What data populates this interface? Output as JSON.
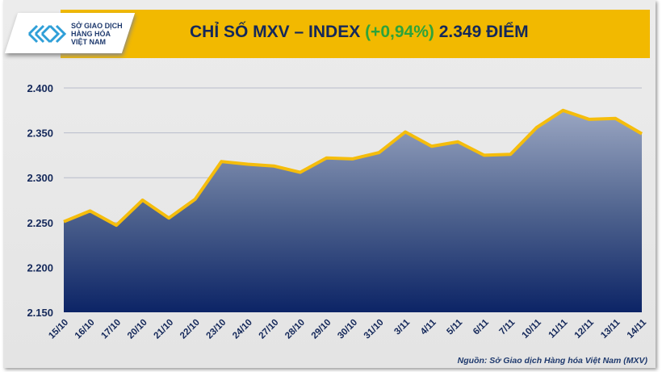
{
  "header": {
    "logo_text": [
      "SỞ GIAO DỊCH",
      "HÀNG HÓA",
      "VIỆT NAM"
    ],
    "title": "CHỈ SỐ MXV – INDEX",
    "change": "(+0,94%)",
    "value": "2.349 ĐIỂM",
    "title_color": "#14285a",
    "change_color": "#2ea33a",
    "banner_color": "#f2b900"
  },
  "source": "Nguồn: Sở Giao dịch Hàng hóa Việt Nam (MXV)",
  "chart_data": {
    "type": "area",
    "categories": [
      "15/10",
      "16/10",
      "17/10",
      "20/10",
      "21/10",
      "22/10",
      "23/10",
      "24/10",
      "27/10",
      "28/10",
      "29/10",
      "30/10",
      "31/10",
      "3/11",
      "4/11",
      "5/11",
      "6/11",
      "7/11",
      "10/11",
      "11/11",
      "12/11",
      "13/11",
      "14/11"
    ],
    "values": [
      2251,
      2263,
      2247,
      2275,
      2255,
      2276,
      2318,
      2315,
      2313,
      2306,
      2322,
      2321,
      2328,
      2351,
      2335,
      2340,
      2325,
      2326,
      2356,
      2375,
      2365,
      2366,
      2349
    ],
    "ylim": [
      2150,
      2410
    ],
    "yticks": [
      2150,
      2200,
      2250,
      2300,
      2350,
      2400
    ],
    "ytick_labels": [
      "2.150",
      "2.200",
      "2.250",
      "2.300",
      "2.350",
      "2.400"
    ],
    "grid": true,
    "line_color": "#f5bd0c",
    "fill_color": "#1a3270"
  }
}
